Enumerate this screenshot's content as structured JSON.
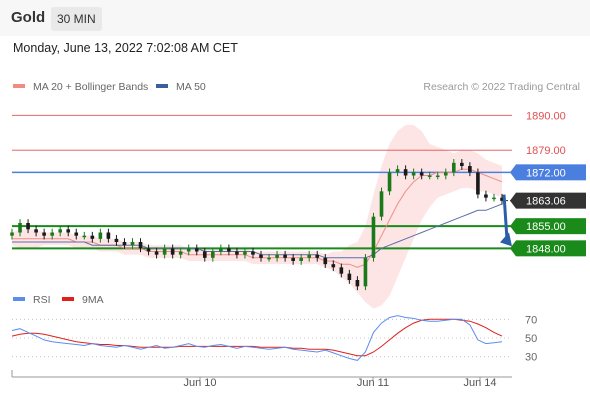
{
  "header": {
    "symbol": "Gold",
    "timeframe": "30 MIN",
    "datetime": "Monday, June 13, 2022 7:02:08 AM CET"
  },
  "legend": [
    {
      "label": "MA 20 + Bollinger Bands",
      "color": "#f28b82"
    },
    {
      "label": "MA 50",
      "color": "#3a5f9c"
    }
  ],
  "credit": "Research © 2022 Trading Central",
  "rsi_legend": [
    {
      "label": "RSI",
      "color": "#5b8def"
    },
    {
      "label": "9MA",
      "color": "#e0201b"
    }
  ],
  "colors": {
    "resistance": "#e05050",
    "pivot": "#4a7fe0",
    "support": "#1a8a1a",
    "current_price_bg": "#333333",
    "arrow": "#2a5fa8",
    "candle_up": "#1a7a1a",
    "candle_down": "#1a1a1a"
  },
  "chart_data": [
    {
      "type": "candlestick",
      "title": "Gold",
      "ylim": [
        1838,
        1898
      ],
      "x_tick_labels": [
        "Jun 10",
        "Jun 11",
        "Jun 14"
      ],
      "levels": [
        {
          "label": "1890.00",
          "value": 1890,
          "role": "resistance"
        },
        {
          "label": "1879.00",
          "value": 1879,
          "role": "resistance"
        },
        {
          "label": "1872.00",
          "value": 1872,
          "role": "pivot"
        },
        {
          "label": "1855.00",
          "value": 1855,
          "role": "support"
        },
        {
          "label": "1848.00",
          "value": 1848,
          "role": "support"
        }
      ],
      "current_price": {
        "label": "1863.06",
        "value": 1863.06
      },
      "close_path": [
        1853,
        1856,
        1854,
        1853,
        1852,
        1853,
        1854,
        1853,
        1852,
        1852,
        1851,
        1853,
        1851,
        1850,
        1849,
        1850,
        1848,
        1847,
        1846,
        1848,
        1846,
        1847,
        1848,
        1847,
        1845,
        1847,
        1848,
        1847,
        1846,
        1847,
        1846,
        1845,
        1845,
        1846,
        1845,
        1844,
        1845,
        1846,
        1845,
        1843,
        1842,
        1840,
        1838,
        1836,
        1845,
        1858,
        1866,
        1872,
        1873,
        1871,
        1872,
        1871,
        1871,
        1871,
        1872,
        1875,
        1874,
        1872,
        1865,
        1864,
        1864,
        1863
      ],
      "ma20_path": [
        1851,
        1851,
        1851,
        1851,
        1851,
        1851,
        1851,
        1851,
        1850,
        1850,
        1850,
        1849,
        1849,
        1849,
        1848,
        1848,
        1848,
        1847,
        1847,
        1847,
        1847,
        1847,
        1846,
        1846,
        1846,
        1846,
        1846,
        1846,
        1846,
        1846,
        1845,
        1845,
        1845,
        1845,
        1845,
        1845,
        1845,
        1845,
        1845,
        1844,
        1844,
        1843,
        1843,
        1842,
        1843,
        1847,
        1852,
        1857,
        1862,
        1866,
        1869,
        1871,
        1871,
        1872,
        1872,
        1872,
        1873,
        1873,
        1872,
        1871,
        1870,
        1869
      ],
      "ma50_path": [
        1850,
        1850,
        1850,
        1850,
        1850,
        1850,
        1850,
        1850,
        1850,
        1850,
        1849,
        1849,
        1849,
        1849,
        1849,
        1849,
        1849,
        1848,
        1848,
        1848,
        1848,
        1848,
        1848,
        1848,
        1847,
        1847,
        1847,
        1847,
        1847,
        1847,
        1847,
        1846,
        1846,
        1846,
        1846,
        1846,
        1846,
        1846,
        1846,
        1845,
        1845,
        1845,
        1845,
        1845,
        1845,
        1846,
        1848,
        1849,
        1850,
        1851,
        1852,
        1853,
        1854,
        1855,
        1856,
        1857,
        1858,
        1859,
        1860,
        1860,
        1861,
        1862
      ],
      "bb_halfwidth_path": [
        2,
        3,
        3,
        3,
        2,
        2,
        2,
        2,
        2,
        2,
        2,
        2,
        2,
        2,
        2,
        2,
        2,
        2,
        2,
        2,
        2,
        2,
        2,
        2,
        2,
        2,
        2,
        2,
        2,
        2,
        2,
        2,
        2,
        2,
        2,
        2,
        2,
        2,
        2,
        2,
        3,
        4,
        6,
        8,
        12,
        18,
        22,
        24,
        23,
        21,
        18,
        14,
        10,
        8,
        7,
        6,
        6,
        6,
        6,
        5,
        5,
        5
      ]
    },
    {
      "type": "line",
      "title": "RSI",
      "ylim": [
        20,
        80
      ],
      "y_tick_labels": [
        "70",
        "50",
        "30"
      ],
      "x_tick_labels": [
        "Jun 10",
        "Jun 11",
        "Jun 14"
      ],
      "series": [
        {
          "name": "RSI",
          "values": [
            58,
            60,
            56,
            52,
            48,
            46,
            45,
            44,
            43,
            42,
            44,
            42,
            41,
            40,
            42,
            40,
            38,
            40,
            42,
            39,
            40,
            42,
            44,
            41,
            40,
            42,
            43,
            41,
            39,
            41,
            40,
            39,
            38,
            39,
            40,
            38,
            37,
            36,
            35,
            37,
            34,
            31,
            28,
            26,
            35,
            56,
            66,
            72,
            74,
            72,
            71,
            69,
            68,
            68,
            69,
            70,
            70,
            64,
            48,
            44,
            45,
            46
          ]
        },
        {
          "name": "9MA",
          "values": [
            52,
            54,
            55,
            55,
            54,
            52,
            50,
            48,
            46,
            45,
            44,
            43,
            43,
            42,
            42,
            41,
            40,
            40,
            40,
            40,
            40,
            41,
            41,
            41,
            41,
            41,
            41,
            41,
            41,
            41,
            41,
            40,
            40,
            40,
            40,
            39,
            39,
            38,
            38,
            38,
            37,
            35,
            33,
            31,
            31,
            35,
            41,
            48,
            55,
            61,
            66,
            69,
            70,
            70,
            70,
            70,
            69,
            68,
            65,
            61,
            56,
            52
          ]
        }
      ]
    }
  ]
}
